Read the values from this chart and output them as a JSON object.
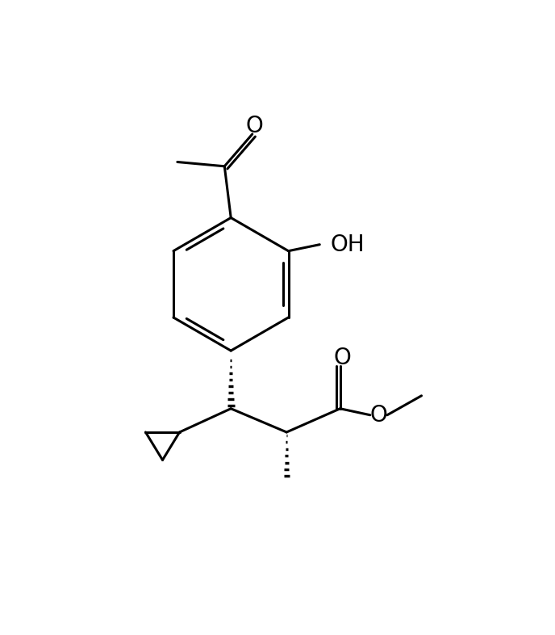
{
  "bg_color": "#ffffff",
  "line_color": "#000000",
  "line_width": 2.2,
  "fig_width": 6.88,
  "fig_height": 7.86,
  "dpi": 100,
  "xlim": [
    0,
    10
  ],
  "ylim": [
    0,
    11.4
  ]
}
